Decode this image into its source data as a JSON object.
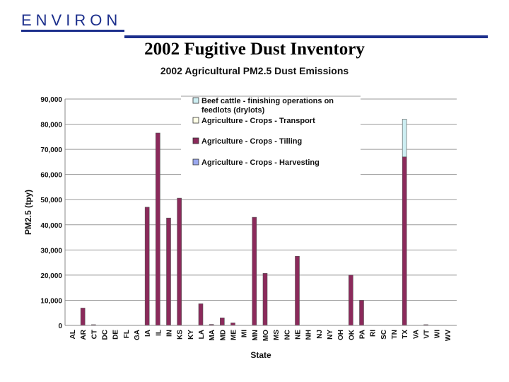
{
  "header": {
    "logo_text": "ENVIRON",
    "slide_title": "2002 Fugitive Dust Inventory",
    "brand_color": "#1c2f8c"
  },
  "chart_data": {
    "type": "bar",
    "stacked": true,
    "title": "2002 Agricultural PM2.5 Dust Emissions",
    "xlabel": "State",
    "ylabel": "PM2.5 (tpy)",
    "ylim": [
      0,
      90000
    ],
    "yticks": [
      0,
      10000,
      20000,
      30000,
      40000,
      50000,
      60000,
      70000,
      80000,
      90000
    ],
    "ytick_labels": [
      "0",
      "10,000",
      "20,000",
      "30,000",
      "40,000",
      "50,000",
      "60,000",
      "70,000",
      "80,000",
      "90,000"
    ],
    "grid": true,
    "legend_position": "top-right",
    "categories": [
      "AL",
      "AR",
      "CT",
      "DC",
      "DE",
      "FL",
      "GA",
      "IA",
      "IL",
      "IN",
      "KS",
      "KY",
      "LA",
      "MA",
      "MD",
      "ME",
      "MI",
      "MN",
      "MO",
      "MS",
      "NC",
      "NE",
      "NH",
      "NJ",
      "NY",
      "OH",
      "OK",
      "PA",
      "RI",
      "SC",
      "TN",
      "TX",
      "VA",
      "VT",
      "WI",
      "WV"
    ],
    "series": [
      {
        "name": "Agriculture - Crops - Tilling",
        "color": "#8b2a5b",
        "values": [
          0,
          6900,
          300,
          0,
          0,
          0,
          0,
          47000,
          76500,
          42700,
          50600,
          0,
          8600,
          400,
          3000,
          1000,
          0,
          43000,
          20700,
          0,
          0,
          27500,
          0,
          0,
          0,
          0,
          20000,
          10000,
          0,
          0,
          0,
          67000,
          0,
          300,
          0,
          0
        ]
      },
      {
        "name": "Agriculture - Crops - Transport",
        "color": "#ffffe6",
        "values": [
          0,
          0,
          0,
          0,
          0,
          0,
          0,
          0,
          0,
          0,
          0,
          0,
          0,
          0,
          0,
          0,
          0,
          0,
          0,
          0,
          0,
          0,
          0,
          0,
          0,
          0,
          0,
          0,
          0,
          0,
          0,
          0,
          0,
          0,
          0,
          0
        ]
      },
      {
        "name": "Agriculture - Crops - Harvesting",
        "color": "#9aa8ee",
        "values": [
          0,
          0,
          0,
          0,
          0,
          0,
          0,
          0,
          0,
          0,
          0,
          0,
          0,
          0,
          0,
          0,
          0,
          0,
          0,
          0,
          0,
          0,
          0,
          0,
          0,
          0,
          0,
          0,
          0,
          0,
          0,
          0,
          0,
          0,
          0,
          0
        ]
      },
      {
        "name": "Beef cattle - finishing operations on feedlots (drylots)",
        "color": "#cdeef2",
        "values": [
          0,
          0,
          0,
          0,
          0,
          0,
          0,
          0,
          0,
          0,
          0,
          0,
          0,
          0,
          0,
          0,
          0,
          0,
          0,
          0,
          0,
          0,
          0,
          0,
          0,
          0,
          0,
          0,
          0,
          0,
          0,
          15000,
          0,
          0,
          0,
          0
        ]
      }
    ],
    "legend_order": [
      {
        "label_lines": [
          "Beef cattle - finishing operations on",
          "feedlots (drylots)"
        ],
        "color": "#cdeef2"
      },
      {
        "label_lines": [
          "Agriculture - Crops - Transport"
        ],
        "color": "#ffffe6"
      },
      {
        "label_lines": [
          "Agriculture - Crops - Tilling"
        ],
        "color": "#8b2a5b"
      },
      {
        "label_lines": [
          "Agriculture - Crops - Harvesting"
        ],
        "color": "#9aa8ee"
      }
    ]
  }
}
